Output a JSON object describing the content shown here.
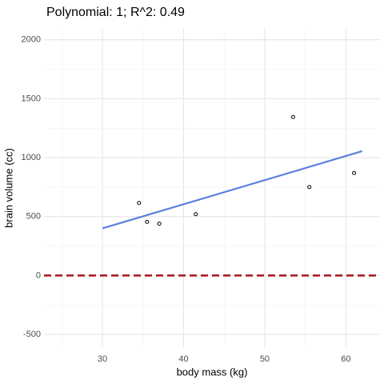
{
  "chart_data": {
    "type": "scatter",
    "title": "Polynomial: 1; R^2: 0.49",
    "xlabel": "body mass (kg)",
    "ylabel": "brain volume (cc)",
    "x": [
      34.5,
      35.5,
      37,
      41.5,
      53.5,
      55.5,
      61
    ],
    "values": [
      615,
      455,
      440,
      520,
      1345,
      750,
      870
    ],
    "point_color": "#000000",
    "fit": {
      "x": [
        30,
        62
      ],
      "values": [
        400,
        1055
      ],
      "color": "#5b7fe0"
    },
    "hline": {
      "value": 0,
      "color": "#a8141c",
      "dashed": true
    },
    "xlim": [
      22.8,
      64.2
    ],
    "ylim": [
      -615,
      2100
    ],
    "xticks": [
      30,
      40,
      50,
      60
    ],
    "yticks": [
      -500,
      0,
      500,
      1000,
      1500,
      2000
    ],
    "grid": true
  }
}
